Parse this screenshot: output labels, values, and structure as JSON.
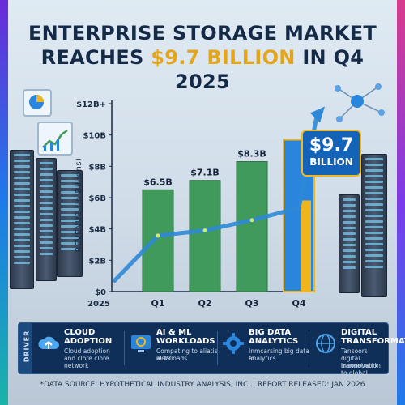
{
  "title": {
    "part1": "ENTERPRISE STORAGE MARKET",
    "part2": "REACHES ",
    "highlight": "$9.7 BILLION",
    "part3": " IN Q4 2025"
  },
  "callout": {
    "value": "$9.7",
    "unit": "BILLION"
  },
  "chart_data": {
    "type": "bar",
    "categories": [
      "Q1",
      "Q2",
      "Q3",
      "Q4"
    ],
    "values": [
      6.5,
      7.1,
      8.3,
      9.7
    ],
    "data_labels": [
      "$6.5B",
      "$7.1B",
      "$8.3B",
      ""
    ],
    "ylabel": "REVENUE (in Billions)",
    "xlabel_left": "2025",
    "ylim": [
      0,
      12
    ],
    "yticks": [
      {
        "value": 0,
        "label": "$0"
      },
      {
        "value": 2,
        "label": "$2B"
      },
      {
        "value": 4,
        "label": "$4B"
      },
      {
        "value": 6,
        "label": "$6B"
      },
      {
        "value": 8,
        "label": "$8B"
      },
      {
        "value": 10,
        "label": "$10B"
      },
      {
        "value": 12,
        "label": "$12B+"
      }
    ],
    "colors": {
      "bar": "#3f9a5c",
      "highlight_bar": "#2a86dc",
      "highlight_inner": "#f0b41e",
      "arrow": "#2f88d6"
    },
    "grid": false,
    "trend_arrow": true
  },
  "drivers_panel": {
    "tag": "DRIVER",
    "items": [
      {
        "icon": "cloud-upload-icon",
        "title": "CLOUD ADOPTION",
        "line1": "Cloud adoption",
        "line2": "and clore clore network"
      },
      {
        "icon": "ai-brain-icon",
        "title": "AI & ML WORKLOADS",
        "line1": "Compating to aliatis al-ML",
        "line2": "workloads"
      },
      {
        "icon": "gear-analytics-icon",
        "title": "BIG DATA ANALYTICS",
        "line1": "Inmcarsing big data to",
        "line2": "analytics"
      },
      {
        "icon": "globe-network-icon",
        "title": "DIGITAL TRANSFORMATION",
        "line1": "Tansoors digital innonovation to global",
        "line2": "trannetwork"
      }
    ]
  },
  "footer": "*DATA SOURCE: HYPOTHETICAL INDUSTRY ANALYSIS, INC. | REPORT RELEASED: JAN 2026"
}
